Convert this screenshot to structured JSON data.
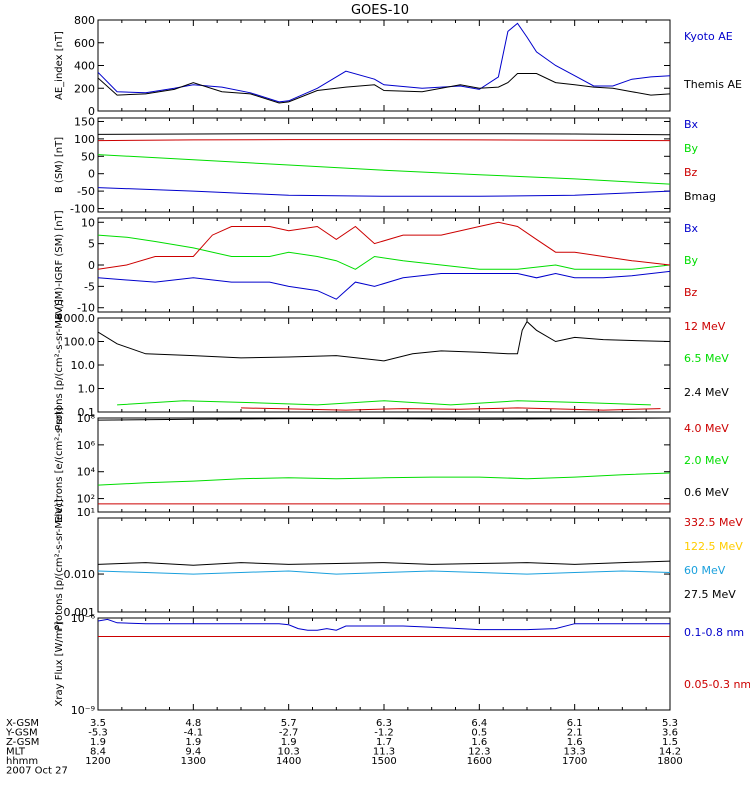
{
  "title": "GOES-10",
  "x_axis": {
    "hhmm": [
      "1200",
      "1300",
      "1400",
      "1500",
      "1600",
      "1700",
      "1800"
    ],
    "rows": [
      {
        "label": "X-GSM",
        "values": [
          "3.5",
          "4.8",
          "5.7",
          "6.3",
          "6.4",
          "6.1",
          "5.3"
        ]
      },
      {
        "label": "Y-GSM",
        "values": [
          "-5.3",
          "-4.1",
          "-2.7",
          "-1.2",
          "0.5",
          "2.1",
          "3.6"
        ]
      },
      {
        "label": "Z-GSM",
        "values": [
          "1.9",
          "1.9",
          "1.9",
          "1.7",
          "1.6",
          "1.6",
          "1.5"
        ]
      },
      {
        "label": "MLT",
        "values": [
          "8.4",
          "9.4",
          "10.3",
          "11.3",
          "12.3",
          "13.3",
          "14.2"
        ]
      },
      {
        "label": "hhmm",
        "values": [
          "1200",
          "1300",
          "1400",
          "1500",
          "1600",
          "1700",
          "1800"
        ]
      }
    ],
    "date": "2007 Oct 27"
  },
  "chart_data": [
    {
      "type": "line",
      "ylabel": "AE_index [nT]",
      "ylim": [
        0,
        800
      ],
      "yticks": [
        0,
        200,
        400,
        600,
        800
      ],
      "ytick_labels": [
        "0",
        "200",
        "400",
        "600",
        "800"
      ],
      "scale": "linear",
      "series": [
        {
          "name": "Kyoto AE",
          "color": "#0000cc",
          "x": [
            12.0,
            12.2,
            12.5,
            12.8,
            13.0,
            13.3,
            13.6,
            13.9,
            14.0,
            14.3,
            14.6,
            14.9,
            15.0,
            15.4,
            15.8,
            16.0,
            16.2,
            16.3,
            16.4,
            16.5,
            16.6,
            16.8,
            17.0,
            17.2,
            17.4,
            17.6,
            17.8,
            18.0
          ],
          "y": [
            340,
            170,
            160,
            200,
            230,
            210,
            160,
            80,
            90,
            200,
            350,
            280,
            230,
            200,
            220,
            190,
            300,
            700,
            770,
            650,
            520,
            400,
            310,
            220,
            220,
            280,
            300,
            310
          ]
        },
        {
          "name": "Themis AE",
          "color": "#000000",
          "x": [
            12.0,
            12.2,
            12.5,
            12.8,
            13.0,
            13.3,
            13.6,
            13.9,
            14.0,
            14.3,
            14.6,
            14.9,
            15.0,
            15.4,
            15.8,
            16.0,
            16.2,
            16.3,
            16.4,
            16.6,
            16.8,
            17.0,
            17.2,
            17.4,
            17.6,
            17.8,
            18.0
          ],
          "y": [
            290,
            140,
            150,
            190,
            250,
            170,
            150,
            70,
            80,
            180,
            210,
            230,
            180,
            170,
            230,
            200,
            210,
            250,
            330,
            330,
            250,
            230,
            210,
            200,
            170,
            140,
            150
          ]
        }
      ]
    },
    {
      "type": "line",
      "ylabel": "B (SM) [nT]",
      "ylim": [
        -110,
        160
      ],
      "yticks": [
        -100,
        -50,
        0,
        50,
        100,
        150
      ],
      "ytick_labels": [
        "-100",
        "-50",
        "0",
        "50",
        "100",
        "150"
      ],
      "scale": "linear",
      "series": [
        {
          "name": "Bx",
          "color": "#0000cc",
          "x": [
            12.0,
            13.0,
            14.0,
            15.0,
            16.0,
            17.0,
            18.0
          ],
          "y": [
            -40,
            -50,
            -62,
            -65,
            -65,
            -62,
            -50
          ]
        },
        {
          "name": "By",
          "color": "#00dd00",
          "x": [
            12.0,
            13.0,
            14.0,
            15.0,
            16.0,
            17.0,
            18.0
          ],
          "y": [
            55,
            40,
            25,
            10,
            -3,
            -15,
            -30
          ]
        },
        {
          "name": "Bz",
          "color": "#cc0000",
          "x": [
            12.0,
            13.0,
            14.0,
            15.0,
            16.0,
            17.0,
            18.0
          ],
          "y": [
            95,
            97,
            98,
            98,
            97,
            96,
            95
          ]
        },
        {
          "name": "Bmag",
          "color": "#000000",
          "x": [
            12.0,
            13.0,
            14.0,
            15.0,
            16.0,
            17.0,
            18.0
          ],
          "y": [
            113,
            114,
            115,
            115,
            115,
            114,
            112
          ]
        }
      ]
    },
    {
      "type": "line",
      "ylabel": "B (SM)-IGRF (SM) [nT]",
      "ylim": [
        -11,
        11
      ],
      "yticks": [
        -10,
        -5,
        0,
        5,
        10
      ],
      "ytick_labels": [
        "-10",
        "-5",
        "0",
        "5",
        "10"
      ],
      "scale": "linear",
      "series": [
        {
          "name": "Bx",
          "color": "#0000cc",
          "x": [
            12.0,
            12.3,
            12.6,
            13.0,
            13.4,
            13.8,
            14.0,
            14.3,
            14.5,
            14.7,
            14.9,
            15.2,
            15.6,
            16.0,
            16.4,
            16.6,
            16.8,
            17.0,
            17.3,
            17.6,
            18.0
          ],
          "y": [
            -3,
            -3.5,
            -4,
            -3,
            -4,
            -4,
            -5,
            -6,
            -8,
            -4,
            -5,
            -3,
            -2,
            -2,
            -2,
            -3,
            -2,
            -3,
            -3,
            -2.5,
            -1.5
          ]
        },
        {
          "name": "By",
          "color": "#00dd00",
          "x": [
            12.0,
            12.3,
            12.6,
            13.0,
            13.4,
            13.8,
            14.0,
            14.3,
            14.5,
            14.7,
            14.9,
            15.2,
            15.6,
            16.0,
            16.4,
            16.8,
            17.0,
            17.3,
            17.6,
            18.0
          ],
          "y": [
            7,
            6.5,
            5.5,
            4,
            2,
            2,
            3,
            2,
            1,
            -1,
            2,
            1,
            0,
            -1,
            -1,
            0,
            -1,
            -1,
            -1,
            0
          ]
        },
        {
          "name": "Bz",
          "color": "#cc0000",
          "x": [
            12.0,
            12.3,
            12.6,
            13.0,
            13.2,
            13.4,
            13.8,
            14.0,
            14.3,
            14.5,
            14.7,
            14.9,
            15.2,
            15.6,
            16.0,
            16.2,
            16.4,
            16.6,
            16.8,
            17.0,
            17.3,
            17.6,
            18.0
          ],
          "y": [
            -1,
            0,
            2,
            2,
            7,
            9,
            9,
            8,
            9,
            6,
            9,
            5,
            7,
            7,
            9,
            10,
            9,
            6,
            3,
            3,
            2,
            1,
            0
          ]
        }
      ]
    },
    {
      "type": "line",
      "ylabel": "Protons [p/(cm²-s-sr-MeV)]",
      "ylim": [
        0.1,
        1000
      ],
      "yticks": [
        0.1,
        1.0,
        10.0,
        100.0,
        1000.0
      ],
      "ytick_labels": [
        "0.1",
        "1.0",
        "10.0",
        "100.0",
        "1000.0"
      ],
      "scale": "log",
      "series": [
        {
          "name": "12 MeV",
          "color": "#cc0000",
          "x": [
            13.5,
            14.6,
            15.2,
            15.8,
            16.4,
            17.3,
            17.9
          ],
          "y": [
            0.15,
            0.12,
            0.14,
            0.13,
            0.15,
            0.12,
            0.14
          ]
        },
        {
          "name": "6.5 MeV",
          "color": "#00dd00",
          "x": [
            12.2,
            12.9,
            13.6,
            14.3,
            15.0,
            15.7,
            16.4,
            17.1,
            17.8
          ],
          "y": [
            0.2,
            0.3,
            0.25,
            0.2,
            0.3,
            0.2,
            0.3,
            0.25,
            0.2
          ]
        },
        {
          "name": "2.4 MeV",
          "color": "#000000",
          "x": [
            12.0,
            12.2,
            12.5,
            13.0,
            13.5,
            14.0,
            14.5,
            15.0,
            15.3,
            15.6,
            16.0,
            16.3,
            16.4,
            16.45,
            16.5,
            16.6,
            16.8,
            17.0,
            17.3,
            17.6,
            18.0
          ],
          "y": [
            250,
            80,
            30,
            25,
            20,
            22,
            25,
            15,
            30,
            40,
            35,
            30,
            30,
            300,
            700,
            300,
            100,
            150,
            120,
            110,
            100
          ]
        }
      ]
    },
    {
      "type": "line",
      "ylabel": "Electrons [e/(cm²-s-sr)]",
      "ylim": [
        10,
        100000000
      ],
      "yticks": [
        10,
        100,
        10000,
        1000000,
        100000000
      ],
      "ytick_labels": [
        "10¹",
        "10²",
        "10⁴",
        "10⁶",
        "10⁸"
      ],
      "scale": "log",
      "series": [
        {
          "name": "4.0 MeV",
          "color": "#cc0000",
          "x": [
            12.0,
            13.0,
            14.0,
            15.0,
            16.0,
            17.0,
            18.0
          ],
          "y": [
            40,
            40,
            40,
            40,
            40,
            40,
            40
          ]
        },
        {
          "name": "2.0 MeV",
          "color": "#00dd00",
          "x": [
            12.0,
            12.5,
            13.0,
            13.5,
            14.0,
            14.5,
            15.0,
            15.5,
            16.0,
            16.5,
            17.0,
            17.5,
            18.0
          ],
          "y": [
            1000,
            1500,
            2000,
            3000,
            3500,
            3000,
            3500,
            4000,
            4000,
            3000,
            4000,
            6000,
            8000
          ]
        },
        {
          "name": "0.6 MeV",
          "color": "#000000",
          "x": [
            12.0,
            13.0,
            14.0,
            15.0,
            16.0,
            17.0,
            18.0
          ],
          "y": [
            70000000,
            80000000,
            90000000,
            90000000,
            80000000,
            90000000,
            100000000
          ]
        }
      ]
    },
    {
      "type": "line",
      "ylabel": "Protons [p/(cm²-s-sr-MeV)]",
      "ylim": [
        0.001,
        0.3
      ],
      "yticks": [
        0.001,
        0.01
      ],
      "ytick_labels": [
        "0.001",
        "0.010"
      ],
      "scale": "log",
      "series": [
        {
          "name": "332.5 MeV",
          "color": "#cc0000",
          "x": [],
          "y": []
        },
        {
          "name": "122.5 MeV",
          "color": "#ffcc00",
          "x": [],
          "y": []
        },
        {
          "name": "60 MeV",
          "color": "#1aa0dd",
          "x": [
            12.0,
            12.5,
            13.0,
            13.5,
            14.0,
            14.5,
            15.0,
            15.5,
            16.0,
            16.5,
            17.0,
            17.5,
            18.0
          ],
          "y": [
            0.012,
            0.011,
            0.01,
            0.011,
            0.012,
            0.01,
            0.011,
            0.012,
            0.011,
            0.01,
            0.011,
            0.012,
            0.011
          ]
        },
        {
          "name": "27.5 MeV",
          "color": "#000000",
          "x": [
            12.0,
            12.5,
            13.0,
            13.5,
            14.0,
            14.5,
            15.0,
            15.5,
            16.0,
            16.5,
            17.0,
            17.5,
            18.0
          ],
          "y": [
            0.018,
            0.02,
            0.017,
            0.02,
            0.018,
            0.019,
            0.02,
            0.018,
            0.019,
            0.02,
            0.018,
            0.02,
            0.022
          ]
        }
      ]
    },
    {
      "type": "line",
      "ylabel": "Xray Flux [W/m²]",
      "ylim": [
        1e-09,
        1e-06
      ],
      "yticks": [
        1e-09,
        1e-06
      ],
      "ytick_labels": [
        "10⁻⁹",
        "10⁻⁶"
      ],
      "scale": "log",
      "series": [
        {
          "name": "0.1-0.8 nm",
          "color": "#0000cc",
          "x": [
            12.0,
            12.1,
            12.2,
            12.5,
            13.0,
            13.5,
            13.9,
            14.0,
            14.1,
            14.2,
            14.3,
            14.4,
            14.5,
            14.6,
            14.9,
            15.0,
            15.2,
            15.5,
            15.8,
            16.0,
            16.3,
            16.5,
            16.8,
            17.0,
            17.5,
            18.0
          ],
          "y": [
            8e-07,
            9e-07,
            7e-07,
            6.5e-07,
            6.5e-07,
            6.5e-07,
            6.5e-07,
            6e-07,
            4.5e-07,
            4e-07,
            4e-07,
            4.5e-07,
            4e-07,
            5.5e-07,
            5.5e-07,
            5.5e-07,
            5.5e-07,
            5e-07,
            4.5e-07,
            4.2e-07,
            4.2e-07,
            4.2e-07,
            4.5e-07,
            6.5e-07,
            6.5e-07,
            6.5e-07
          ]
        },
        {
          "name": "0.05-0.3 nm",
          "color": "#cc0000",
          "x": [
            12.0,
            18.0
          ],
          "y": [
            2.5e-07,
            2.5e-07
          ]
        }
      ]
    }
  ]
}
